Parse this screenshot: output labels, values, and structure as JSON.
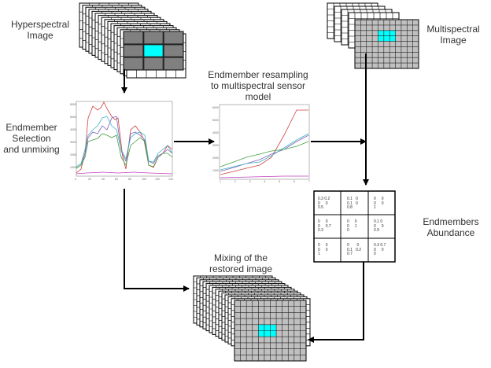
{
  "labels": {
    "hyperspectral": "Hyperspectral\nImage",
    "multispectral": "Multispectral\nImage",
    "selection": "Endmember\nSelection\nand unmixing",
    "resampling": "Endmember resampling\nto multispectral sensor\nmodel",
    "abundance": "Endmembers\nAbundance",
    "mixing": "Mixing of the\nrestored image"
  },
  "abundance_table": [
    [
      "0.3 0.2\n0     0\n0.5",
      "0.1   0\n0.1   0\n0.8",
      "0     0\n0     0\n1"
    ],
    [
      "0     0\n0     0.7\n0.3",
      "0     0\n0     1\n0",
      "0.1 0\n0     0\n0.9"
    ],
    [
      "0     0\n0     0\n1",
      "0       0\n0.1   0.2\n0.7",
      "0.3 0.7\n0     0\n0"
    ]
  ],
  "colors": {
    "highlight": "#00ffff",
    "hyper_cell": "#808080",
    "multi_cell": "#c0c0c0"
  }
}
